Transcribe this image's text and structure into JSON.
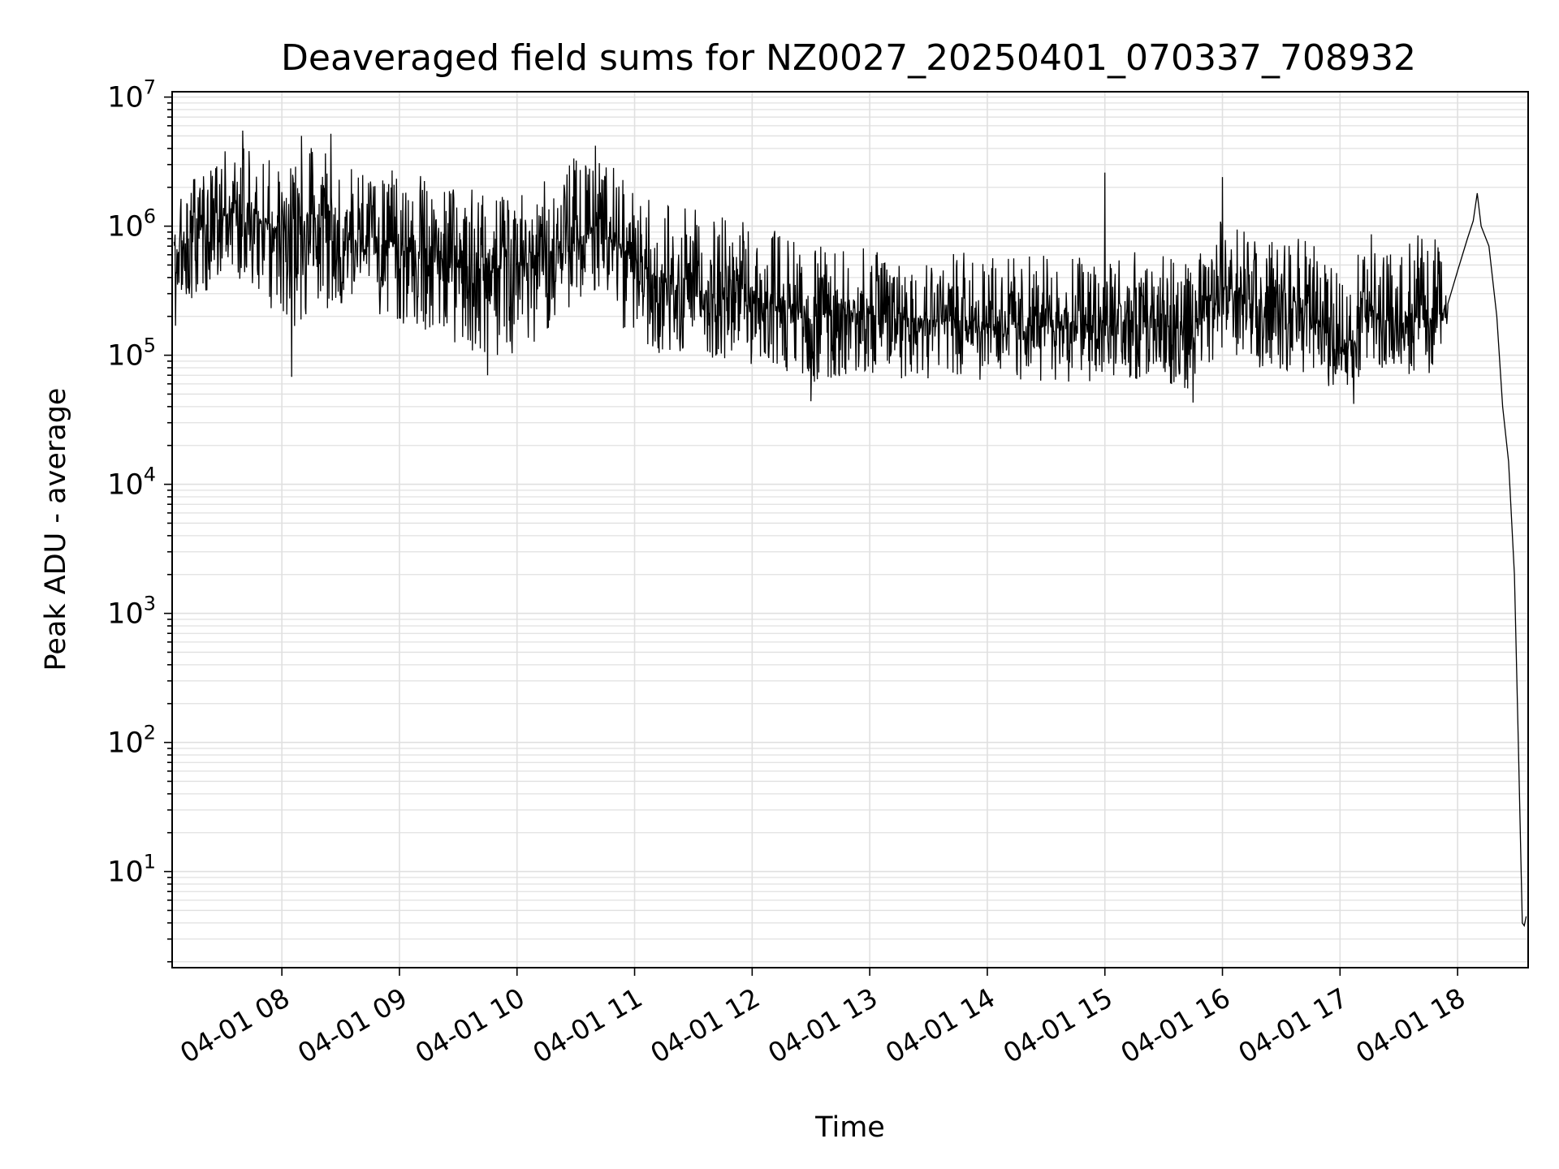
{
  "chart_data": {
    "type": "line",
    "title": "Deaveraged field sums for NZ0027_20250401_070337_708932",
    "xlabel": "Time",
    "ylabel": "Peak ADU - average",
    "y_scale": "log",
    "ylim": [
      1.8,
      11000000
    ],
    "xlim": [
      "2025-04-01 07:04",
      "2025-04-01 18:36"
    ],
    "grid": true,
    "line_color": "#000000",
    "grid_color": "#e0e0e0",
    "y_ticks": [
      {
        "value": 10,
        "base": "10",
        "exp": "1"
      },
      {
        "value": 100,
        "base": "10",
        "exp": "2"
      },
      {
        "value": 1000,
        "base": "10",
        "exp": "3"
      },
      {
        "value": 10000,
        "base": "10",
        "exp": "4"
      },
      {
        "value": 100000,
        "base": "10",
        "exp": "5"
      },
      {
        "value": 1000000,
        "base": "10",
        "exp": "6"
      },
      {
        "value": 10000000,
        "base": "10",
        "exp": "7"
      }
    ],
    "x_ticks": [
      {
        "value": "2025-04-01 08:00",
        "label": "04-01 08"
      },
      {
        "value": "2025-04-01 09:00",
        "label": "04-01 09"
      },
      {
        "value": "2025-04-01 10:00",
        "label": "04-01 10"
      },
      {
        "value": "2025-04-01 11:00",
        "label": "04-01 11"
      },
      {
        "value": "2025-04-01 12:00",
        "label": "04-01 12"
      },
      {
        "value": "2025-04-01 13:00",
        "label": "04-01 13"
      },
      {
        "value": "2025-04-01 14:00",
        "label": "04-01 14"
      },
      {
        "value": "2025-04-01 15:00",
        "label": "04-01 15"
      },
      {
        "value": "2025-04-01 16:00",
        "label": "04-01 16"
      },
      {
        "value": "2025-04-01 17:00",
        "label": "04-01 17"
      },
      {
        "value": "2025-04-01 18:00",
        "label": "04-01 18"
      }
    ],
    "series": [
      {
        "name": "",
        "envelope": [
          {
            "x": "2025-04-01 07:05",
            "median": 600000,
            "low": 150000,
            "high": 1200000
          },
          {
            "x": "2025-04-01 07:10",
            "median": 750000,
            "low": 250000,
            "high": 2000000
          },
          {
            "x": "2025-04-01 07:20",
            "median": 1100000,
            "low": 300000,
            "high": 3000000
          },
          {
            "x": "2025-04-01 07:35",
            "median": 1300000,
            "low": 400000,
            "high": 4500000
          },
          {
            "x": "2025-04-01 07:50",
            "median": 1100000,
            "low": 300000,
            "high": 3500000
          },
          {
            "x": "2025-04-01 08:00",
            "median": 900000,
            "low": 120000,
            "high": 3000000
          },
          {
            "x": "2025-04-01 08:15",
            "median": 800000,
            "low": 200000,
            "high": 4500000
          },
          {
            "x": "2025-04-01 08:30",
            "median": 750000,
            "low": 250000,
            "high": 3000000
          },
          {
            "x": "2025-04-01 08:50",
            "median": 800000,
            "low": 200000,
            "high": 2800000
          },
          {
            "x": "2025-04-01 09:10",
            "median": 650000,
            "low": 150000,
            "high": 2500000
          },
          {
            "x": "2025-04-01 09:30",
            "median": 500000,
            "low": 120000,
            "high": 2000000
          },
          {
            "x": "2025-04-01 09:50",
            "median": 450000,
            "low": 90000,
            "high": 1800000
          },
          {
            "x": "2025-04-01 10:10",
            "median": 550000,
            "low": 130000,
            "high": 2000000
          },
          {
            "x": "2025-04-01 10:30",
            "median": 800000,
            "low": 250000,
            "high": 3500000
          },
          {
            "x": "2025-04-01 10:45",
            "median": 900000,
            "low": 300000,
            "high": 3500000
          },
          {
            "x": "2025-04-01 11:00",
            "median": 500000,
            "low": 110000,
            "high": 1800000
          },
          {
            "x": "2025-04-01 11:20",
            "median": 350000,
            "low": 100000,
            "high": 1500000
          },
          {
            "x": "2025-04-01 11:45",
            "median": 280000,
            "low": 90000,
            "high": 1200000
          },
          {
            "x": "2025-04-01 12:10",
            "median": 250000,
            "low": 80000,
            "high": 1000000
          },
          {
            "x": "2025-04-01 12:30",
            "median": 200000,
            "low": 60000,
            "high": 700000
          },
          {
            "x": "2025-04-01 12:50",
            "median": 220000,
            "low": 70000,
            "high": 700000
          },
          {
            "x": "2025-04-01 13:10",
            "median": 200000,
            "low": 65000,
            "high": 650000
          },
          {
            "x": "2025-04-01 13:40",
            "median": 190000,
            "low": 65000,
            "high": 650000
          },
          {
            "x": "2025-04-01 14:10",
            "median": 170000,
            "low": 60000,
            "high": 600000
          },
          {
            "x": "2025-04-01 14:40",
            "median": 170000,
            "low": 60000,
            "high": 600000
          },
          {
            "x": "2025-04-01 15:00",
            "median": 170000,
            "low": 65000,
            "high": 700000
          },
          {
            "x": "2025-04-01 15:30",
            "median": 170000,
            "low": 60000,
            "high": 600000
          },
          {
            "x": "2025-04-01 15:45",
            "median": 140000,
            "low": 50000,
            "high": 500000
          },
          {
            "x": "2025-04-01 16:00",
            "median": 350000,
            "low": 90000,
            "high": 1200000
          },
          {
            "x": "2025-04-01 16:20",
            "median": 250000,
            "low": 80000,
            "high": 800000
          },
          {
            "x": "2025-04-01 16:45",
            "median": 220000,
            "low": 70000,
            "high": 800000
          },
          {
            "x": "2025-04-01 17:00",
            "median": 100000,
            "low": 50000,
            "high": 400000
          },
          {
            "x": "2025-04-01 17:15",
            "median": 220000,
            "low": 80000,
            "high": 1000000
          },
          {
            "x": "2025-04-01 17:35",
            "median": 200000,
            "low": 70000,
            "high": 900000
          },
          {
            "x": "2025-04-01 17:50",
            "median": 200000,
            "low": 70000,
            "high": 900000
          },
          {
            "x": "2025-04-01 17:55",
            "median": 250000,
            "low": 150000,
            "high": 400000
          }
        ],
        "values": [
          {
            "x": "2025-04-01 17:55",
            "y": 250000
          },
          {
            "x": "2025-04-01 18:00",
            "y": 450000
          },
          {
            "x": "2025-04-01 18:05",
            "y": 800000
          },
          {
            "x": "2025-04-01 18:08",
            "y": 1100000
          },
          {
            "x": "2025-04-01 18:10",
            "y": 1800000
          },
          {
            "x": "2025-04-01 18:12",
            "y": 1000000
          },
          {
            "x": "2025-04-01 18:16",
            "y": 700000
          },
          {
            "x": "2025-04-01 18:20",
            "y": 200000
          },
          {
            "x": "2025-04-01 18:23",
            "y": 40000
          },
          {
            "x": "2025-04-01 18:26",
            "y": 15000
          },
          {
            "x": "2025-04-01 18:29",
            "y": 2000
          },
          {
            "x": "2025-04-01 18:31",
            "y": 100
          },
          {
            "x": "2025-04-01 18:33",
            "y": 4
          },
          {
            "x": "2025-04-01 18:34",
            "y": 3.8
          },
          {
            "x": "2025-04-01 18:35",
            "y": 4.5
          }
        ],
        "spikes": [
          {
            "x": "2025-04-01 07:40",
            "y": 5500000
          },
          {
            "x": "2025-04-01 08:10",
            "y": 5000000
          },
          {
            "x": "2025-04-01 08:25",
            "y": 5200000
          },
          {
            "x": "2025-04-01 10:40",
            "y": 4200000
          },
          {
            "x": "2025-04-01 15:00",
            "y": 2600000
          },
          {
            "x": "2025-04-01 16:00",
            "y": 2400000
          },
          {
            "x": "2025-04-01 08:05",
            "y": 68000
          },
          {
            "x": "2025-04-01 09:45",
            "y": 70000
          },
          {
            "x": "2025-04-01 12:30",
            "y": 44000
          },
          {
            "x": "2025-04-01 15:45",
            "y": 43000
          },
          {
            "x": "2025-04-01 17:07",
            "y": 42000
          }
        ]
      }
    ]
  }
}
